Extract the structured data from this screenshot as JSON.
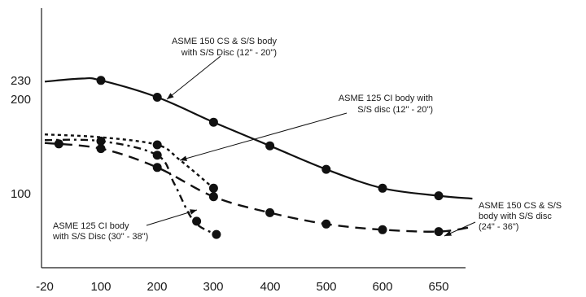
{
  "chart_data": {
    "type": "line",
    "xlabel": "",
    "ylabel": "",
    "x_ticks": [
      "-20",
      "100",
      "200",
      "300",
      "400",
      "500",
      "600",
      "650"
    ],
    "y_ticks": [
      "100",
      "200",
      "230"
    ],
    "xlim": [
      -20,
      680
    ],
    "ylim": [
      0,
      280
    ],
    "grid": false,
    "series": [
      {
        "name": "ASME 150 CS & S/S body with S/S Disc (12\" - 20\")",
        "style": "solid",
        "points": [
          [
            -20,
            227
          ],
          [
            60,
            232
          ],
          [
            100,
            229
          ],
          [
            200,
            202
          ],
          [
            300,
            175
          ],
          [
            400,
            150
          ],
          [
            500,
            125
          ],
          [
            600,
            105
          ],
          [
            650,
            97
          ],
          [
            680,
            94
          ]
        ],
        "markers": [
          [
            100,
            229
          ],
          [
            200,
            202
          ],
          [
            300,
            175
          ],
          [
            400,
            150
          ],
          [
            500,
            125
          ],
          [
            600,
            105
          ],
          [
            650,
            97
          ]
        ]
      },
      {
        "name": "ASME 125 CI body with S/S disc (12\" - 20\")",
        "style": "dotted",
        "points": [
          [
            -20,
            162
          ],
          [
            100,
            159
          ],
          [
            200,
            151
          ],
          [
            240,
            135
          ],
          [
            300,
            105
          ]
        ],
        "markers": [
          [
            200,
            151
          ],
          [
            300,
            105
          ]
        ]
      },
      {
        "name": "ASME 150 CS & S/S body with S/S disc (24\" - 36\")",
        "style": "dashed",
        "points": [
          [
            -20,
            153
          ],
          [
            100,
            147
          ],
          [
            200,
            127
          ],
          [
            300,
            96
          ],
          [
            400,
            79
          ],
          [
            500,
            67
          ],
          [
            600,
            61
          ],
          [
            650,
            59
          ],
          [
            680,
            64
          ]
        ],
        "markers": [
          [
            10,
            152
          ],
          [
            100,
            147
          ],
          [
            200,
            127
          ],
          [
            300,
            96
          ],
          [
            400,
            79
          ],
          [
            500,
            67
          ],
          [
            600,
            61
          ],
          [
            650,
            59
          ]
        ]
      },
      {
        "name": "ASME 125 CI body with S/S Disc (30\" - 38\")",
        "style": "dash-dot",
        "points": [
          [
            -20,
            156
          ],
          [
            100,
            155
          ],
          [
            200,
            140
          ],
          [
            230,
            110
          ],
          [
            265,
            70
          ],
          [
            305,
            56
          ]
        ],
        "markers": [
          [
            100,
            155
          ],
          [
            200,
            140
          ],
          [
            270,
            70
          ],
          [
            305,
            56
          ]
        ]
      }
    ],
    "annotations": [
      {
        "lines": [
          "ASME 150 CS & S/S body",
          "with S/S Disc (12\" - 20\")"
        ]
      },
      {
        "lines": [
          "ASME 125 CI body with",
          "S/S disc (12\" - 20\")"
        ]
      },
      {
        "lines": [
          "ASME 125 CI body",
          "with S/S Disc (30\" - 38\")"
        ]
      },
      {
        "lines": [
          "ASME 150 CS & S/S",
          "body with S/S disc",
          "(24\" - 36\")"
        ]
      }
    ]
  }
}
